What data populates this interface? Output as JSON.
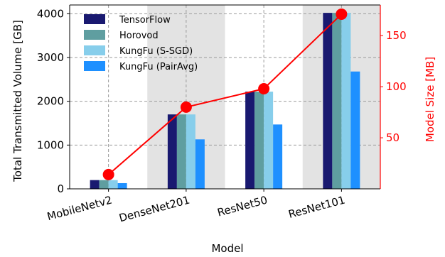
{
  "chart_data": {
    "type": "bar",
    "categories": [
      "MobileNetv2",
      "DenseNet201",
      "ResNet50",
      "ResNet101"
    ],
    "series": [
      {
        "name": "TensorFlow",
        "color": "#191970",
        "values": [
          200,
          1700,
          2220,
          4020
        ]
      },
      {
        "name": "Horovod",
        "color": "#5f9ea0",
        "values": [
          200,
          1700,
          2220,
          4020
        ]
      },
      {
        "name": "KungFu (S-SGD)",
        "color": "#87ceeb",
        "values": [
          200,
          1700,
          2220,
          4020
        ]
      },
      {
        "name": "KungFu (PairAvg)",
        "color": "#1e90ff",
        "values": [
          130,
          1130,
          1470,
          2680
        ]
      }
    ],
    "line_series": {
      "name": "",
      "color": "#ff0000",
      "axis": "right",
      "values": [
        14,
        80,
        98,
        171
      ]
    },
    "xlabel": "Model",
    "ylabel": "Total Transmitted Volume [GB]",
    "ylabel_right": "Model Size [MB]",
    "ylim": [
      0,
      4200
    ],
    "ylim_right": [
      0,
      180
    ],
    "yticks": [
      0,
      1000,
      2000,
      3000,
      4000
    ],
    "yticks_right": [
      50,
      100,
      150
    ],
    "grid": true,
    "grid_style": "dashed",
    "shaded_categories": [
      1,
      3
    ],
    "legend_position": "top-left"
  }
}
